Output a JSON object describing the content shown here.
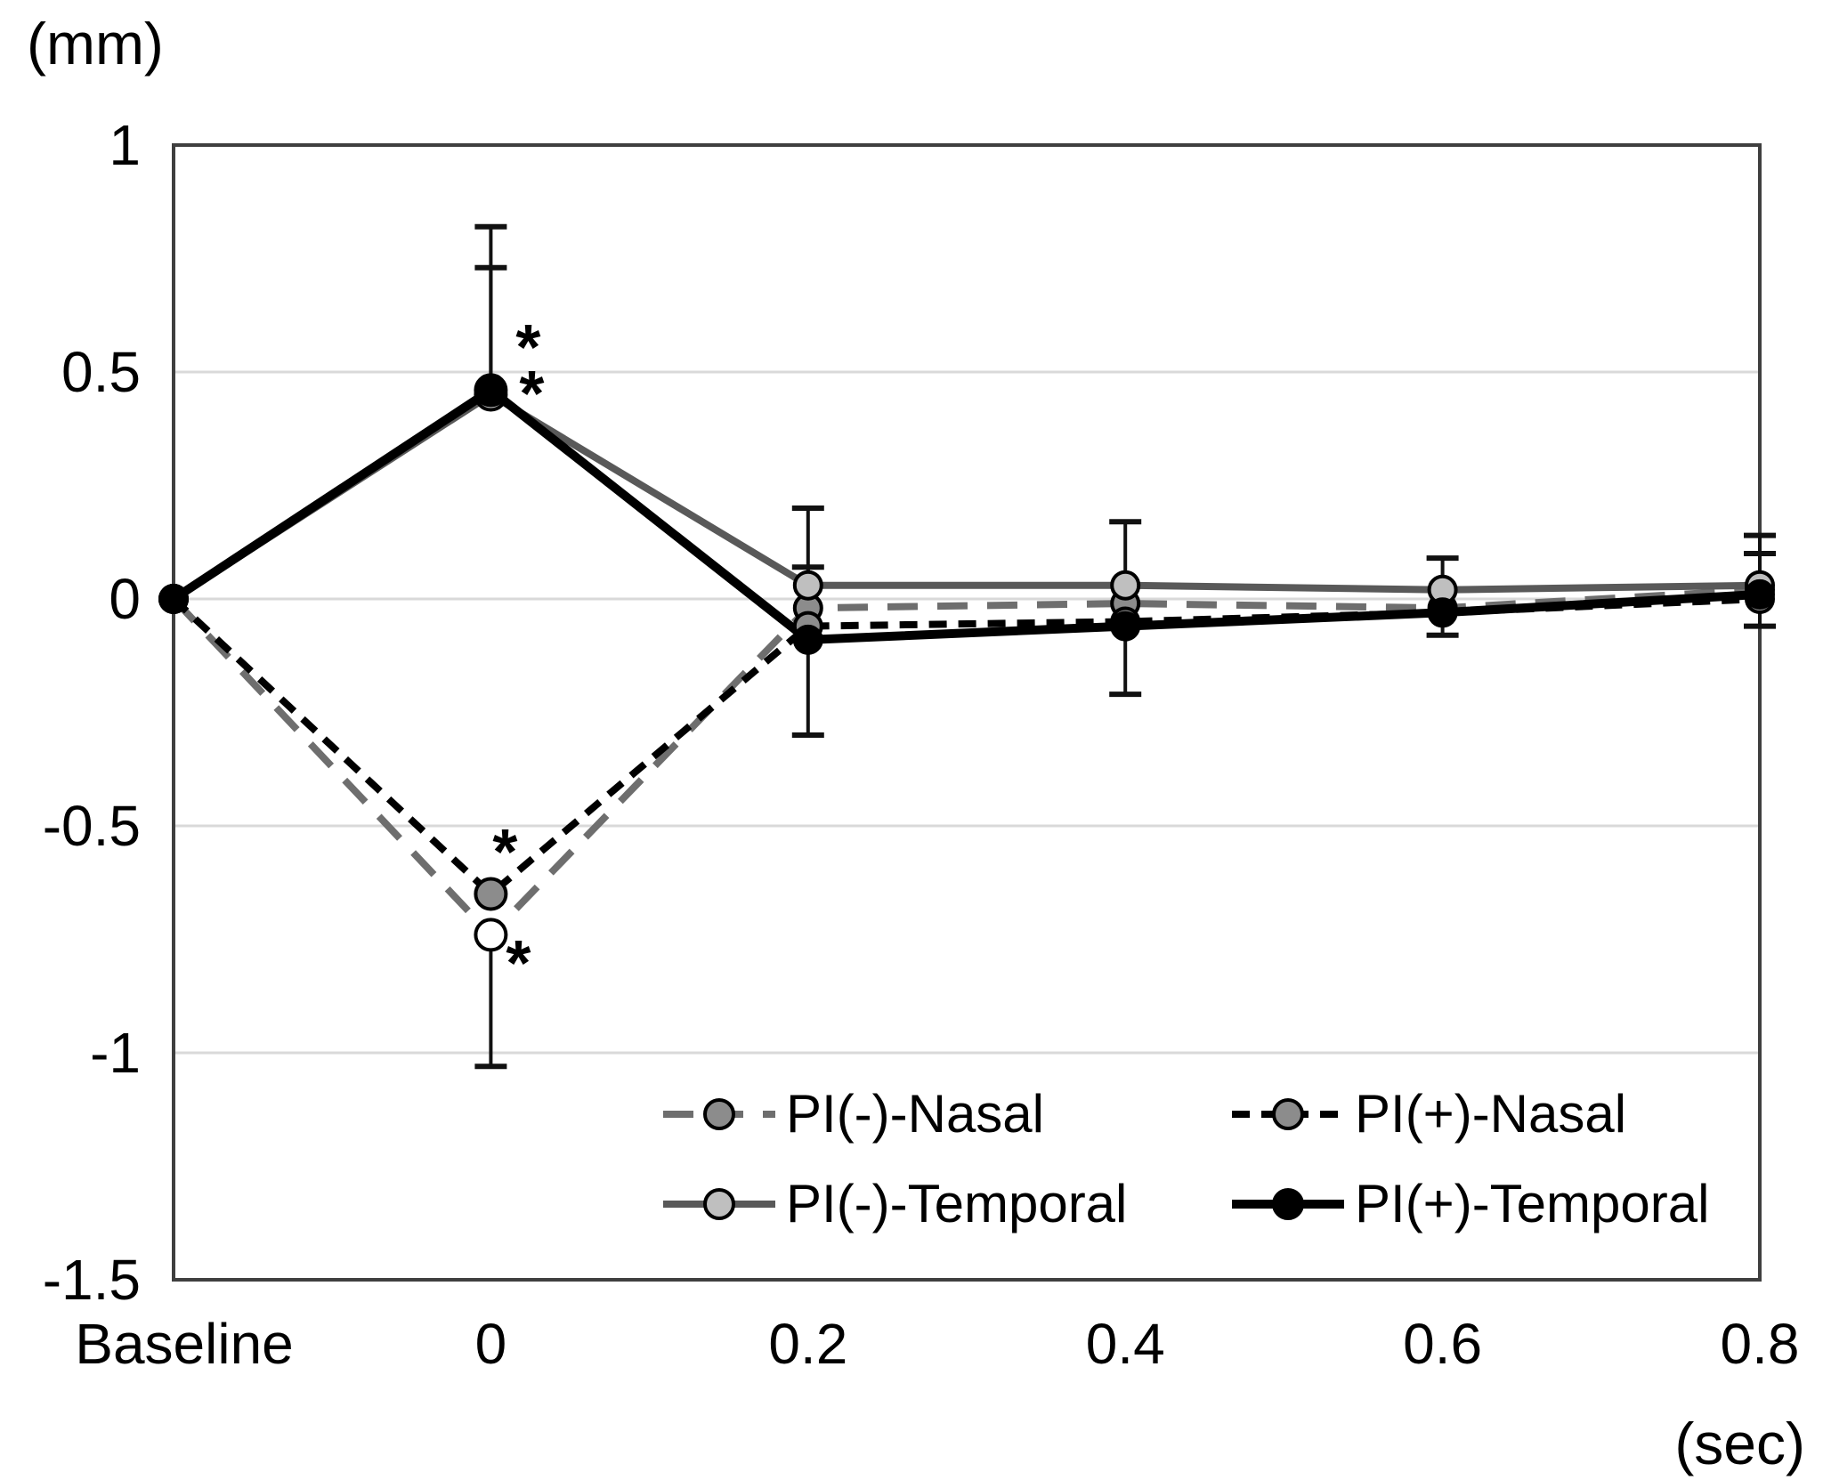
{
  "figure": {
    "y_unit_label": "(mm)",
    "x_unit_label": "(sec)"
  },
  "chart_data": {
    "type": "line",
    "title": "",
    "ylabel": "(mm)",
    "xlabel": "(sec)",
    "categories": [
      "Baseline",
      "0",
      "0.2",
      "0.4",
      "0.6",
      "0.8"
    ],
    "ylim": [
      -1.5,
      1
    ],
    "yticks": [
      1,
      0.5,
      0,
      -0.5,
      -1,
      -1.5
    ],
    "grid": true,
    "legend_position": "inside-bottom-right",
    "colors": {
      "gray_line": "#595959",
      "gray_dash_line": "#6e6e6e",
      "black": "#000000",
      "nasal_marker_fill": "#8c8c8c",
      "temporal_neg_marker_fill": "#bfbfbf",
      "open_marker_fill": "#ffffff",
      "gridline": "#d9d9d9",
      "frame": "#3f3f3f"
    },
    "series": [
      {
        "name": "PI(-)-Nasal",
        "values": [
          0,
          -0.74,
          -0.02,
          -0.01,
          -0.02,
          0.02
        ],
        "line": "dashed-long",
        "color": "#6e6e6e",
        "marker_fill": "#8c8c8c",
        "marker_fill_overrides": {
          "1": "#ffffff"
        }
      },
      {
        "name": "PI(+)-Nasal",
        "values": [
          0,
          -0.65,
          -0.06,
          -0.05,
          -0.03,
          0.0
        ],
        "line": "dashed-short",
        "color": "#000000",
        "marker_fill": "#8c8c8c"
      },
      {
        "name": "PI(-)-Temporal",
        "values": [
          0,
          0.45,
          0.03,
          0.03,
          0.02,
          0.03
        ],
        "line": "solid",
        "color": "#595959",
        "marker_fill": "#bfbfbf"
      },
      {
        "name": "PI(+)-Temporal",
        "values": [
          0,
          0.46,
          -0.09,
          -0.06,
          -0.03,
          0.01
        ],
        "line": "solid",
        "color": "#000000",
        "marker_fill": "#000000"
      }
    ],
    "error_bars": [
      {
        "x": 1,
        "from": 0.46,
        "to": 0.82
      },
      {
        "x": 1,
        "from": 0.45,
        "to": 0.73
      },
      {
        "x": 1,
        "from": -0.74,
        "to": -1.03
      },
      {
        "x": 2,
        "from": 0.03,
        "to": 0.2
      },
      {
        "x": 2,
        "from": -0.02,
        "to": 0.07
      },
      {
        "x": 2,
        "from": -0.09,
        "to": -0.3
      },
      {
        "x": 3,
        "from": 0.03,
        "to": 0.17
      },
      {
        "x": 3,
        "from": -0.06,
        "to": -0.21
      },
      {
        "x": 4,
        "from": 0.02,
        "to": 0.09
      },
      {
        "x": 4,
        "from": -0.03,
        "to": -0.08
      },
      {
        "x": 5,
        "from": 0.03,
        "to": 0.14
      },
      {
        "x": 5,
        "from": 0.02,
        "to": 0.1
      },
      {
        "x": 5,
        "from": 0.01,
        "to": -0.06
      }
    ],
    "annotations": [
      {
        "text": "*",
        "x": 1,
        "value": 0.555,
        "dx": 42
      },
      {
        "text": "*",
        "x": 1,
        "value": 0.453,
        "dx": 46
      },
      {
        "text": "*",
        "x": 1,
        "value": -0.557,
        "dx": 16
      },
      {
        "text": "*",
        "x": 1,
        "value": -0.802,
        "dx": 31
      }
    ]
  }
}
